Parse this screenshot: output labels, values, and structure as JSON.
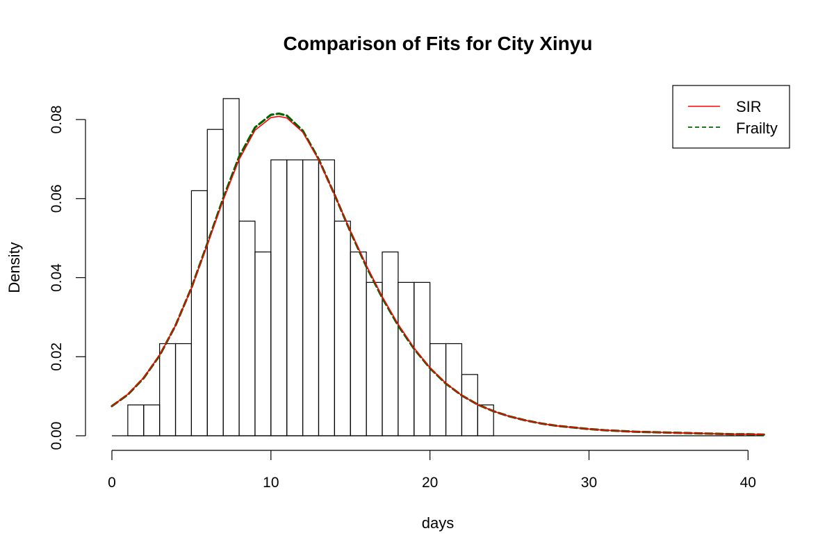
{
  "chart_data": {
    "type": "histogram",
    "title": "Comparison of Fits for City Xinyu",
    "xlabel": "days",
    "ylabel": "Density",
    "xlim": [
      0,
      41
    ],
    "ylim": [
      0,
      0.085
    ],
    "x_ticks": [
      0,
      10,
      20,
      30,
      40
    ],
    "y_ticks": [
      0.0,
      0.02,
      0.04,
      0.06,
      0.08
    ],
    "x_tick_labels": [
      "0",
      "10",
      "20",
      "30",
      "40"
    ],
    "y_tick_labels": [
      "0.00",
      "0.02",
      "0.04",
      "0.06",
      "0.08"
    ],
    "grid": false,
    "legend_position": "top-right",
    "histogram": {
      "bin_width": 1,
      "bins": [
        {
          "start": 0,
          "end": 1,
          "density": 0.0
        },
        {
          "start": 1,
          "end": 2,
          "density": 0.0078
        },
        {
          "start": 2,
          "end": 3,
          "density": 0.0078
        },
        {
          "start": 3,
          "end": 4,
          "density": 0.0233
        },
        {
          "start": 4,
          "end": 5,
          "density": 0.0233
        },
        {
          "start": 5,
          "end": 6,
          "density": 0.062
        },
        {
          "start": 6,
          "end": 7,
          "density": 0.0775
        },
        {
          "start": 7,
          "end": 8,
          "density": 0.0853
        },
        {
          "start": 8,
          "end": 9,
          "density": 0.0543
        },
        {
          "start": 9,
          "end": 10,
          "density": 0.0465
        },
        {
          "start": 10,
          "end": 11,
          "density": 0.0698
        },
        {
          "start": 11,
          "end": 12,
          "density": 0.0698
        },
        {
          "start": 12,
          "end": 13,
          "density": 0.0698
        },
        {
          "start": 13,
          "end": 14,
          "density": 0.0698
        },
        {
          "start": 14,
          "end": 15,
          "density": 0.0543
        },
        {
          "start": 15,
          "end": 16,
          "density": 0.0465
        },
        {
          "start": 16,
          "end": 17,
          "density": 0.0388
        },
        {
          "start": 17,
          "end": 18,
          "density": 0.0465
        },
        {
          "start": 18,
          "end": 19,
          "density": 0.0388
        },
        {
          "start": 19,
          "end": 20,
          "density": 0.0388
        },
        {
          "start": 20,
          "end": 21,
          "density": 0.0233
        },
        {
          "start": 21,
          "end": 22,
          "density": 0.0233
        },
        {
          "start": 22,
          "end": 23,
          "density": 0.0155
        },
        {
          "start": 23,
          "end": 24,
          "density": 0.0078
        }
      ]
    },
    "series": [
      {
        "name": "SIR",
        "style": "solid",
        "color": "#ff0000",
        "x": [
          0,
          1,
          2,
          3,
          4,
          5,
          6,
          7,
          8,
          9,
          10,
          10.5,
          11,
          12,
          13,
          14,
          15,
          16,
          17,
          18,
          19,
          20,
          21,
          22,
          23,
          24,
          25,
          26,
          27,
          28,
          29,
          30,
          31,
          32,
          33,
          34,
          35,
          36,
          37,
          38,
          39,
          40,
          41
        ],
        "y": [
          0.0075,
          0.0105,
          0.0147,
          0.0204,
          0.0279,
          0.0373,
          0.0483,
          0.0596,
          0.0699,
          0.0773,
          0.0805,
          0.0808,
          0.0804,
          0.0768,
          0.0698,
          0.061,
          0.0518,
          0.0431,
          0.0352,
          0.0282,
          0.0222,
          0.0172,
          0.0133,
          0.0102,
          0.0079,
          0.0062,
          0.0049,
          0.0039,
          0.0031,
          0.0025,
          0.0021,
          0.0017,
          0.0014,
          0.0012,
          0.001,
          0.0009,
          0.0008,
          0.0007,
          0.0006,
          0.0005,
          0.0004,
          0.0004,
          0.0003
        ]
      },
      {
        "name": "Frailty",
        "style": "dashed",
        "color": "#006400",
        "x": [
          0,
          1,
          2,
          3,
          4,
          5,
          6,
          7,
          8,
          9,
          10,
          10.5,
          11,
          12,
          13,
          14,
          15,
          16,
          17,
          18,
          19,
          20,
          21,
          22,
          23,
          24,
          25,
          26,
          27,
          28,
          29,
          30,
          31,
          32,
          33,
          34,
          35,
          36,
          37,
          38,
          39,
          40,
          41
        ],
        "y": [
          0.0075,
          0.0104,
          0.0146,
          0.0203,
          0.0279,
          0.0374,
          0.0486,
          0.0601,
          0.0706,
          0.078,
          0.0812,
          0.0815,
          0.081,
          0.0772,
          0.07,
          0.061,
          0.0516,
          0.0428,
          0.0349,
          0.0279,
          0.022,
          0.0171,
          0.0132,
          0.0102,
          0.0079,
          0.0062,
          0.0049,
          0.0039,
          0.0031,
          0.0025,
          0.0021,
          0.0017,
          0.0014,
          0.0012,
          0.001,
          0.0009,
          0.0008,
          0.0007,
          0.0006,
          0.0005,
          0.0004,
          0.0004,
          0.0003
        ]
      }
    ]
  }
}
